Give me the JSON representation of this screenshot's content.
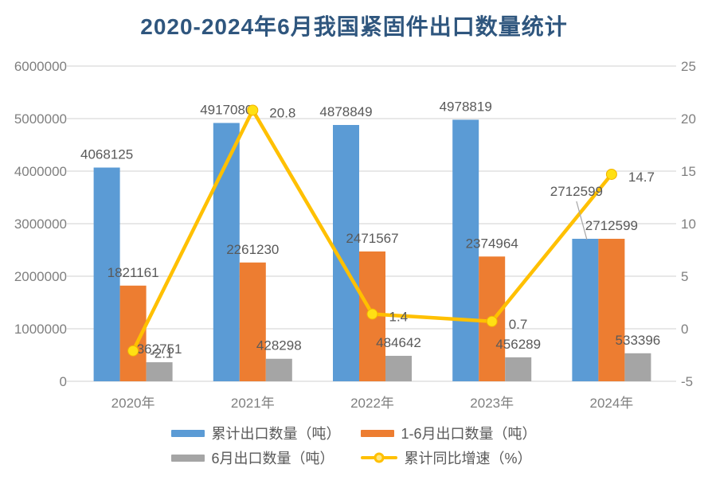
{
  "title": "2020-2024年6月我国紧固件出口数量统计",
  "title_color": "#2F567E",
  "chart_data": {
    "type": "combo-bar-line",
    "title": "2020-2024年6月我国紧固件出口数量统计",
    "categories": [
      "2020年",
      "2021年",
      "2022年",
      "2023年",
      "2024年"
    ],
    "series": [
      {
        "name": "累计出口数量（吨）",
        "type": "bar",
        "axis": "left",
        "color": "#5B9BD5",
        "values": [
          4068125,
          4917080,
          4878849,
          4978819,
          2712599
        ]
      },
      {
        "name": "1-6月出口数量（吨）",
        "type": "bar",
        "axis": "left",
        "color": "#ED7D31",
        "values": [
          1821161,
          2261230,
          2471567,
          2374964,
          2712599
        ]
      },
      {
        "name": "6月出口数量（吨）",
        "type": "bar",
        "axis": "left",
        "color": "#A5A5A5",
        "values": [
          362751,
          428298,
          484642,
          456289,
          533396
        ]
      },
      {
        "name": "累计同比增速（%）",
        "type": "line",
        "axis": "right",
        "color": "#FFC000",
        "marker_color": "#FFE014",
        "values": [
          -2.1,
          20.8,
          1.4,
          0.7,
          14.7
        ]
      }
    ],
    "axes": {
      "left": {
        "range": [
          0,
          6000000
        ],
        "ticks": [
          0,
          1000000,
          2000000,
          3000000,
          4000000,
          5000000,
          6000000
        ]
      },
      "right": {
        "range": [
          -5,
          25
        ],
        "ticks": [
          -5,
          0,
          5,
          10,
          15,
          20,
          25
        ]
      }
    },
    "grid": true,
    "legend_position": "bottom",
    "label_color": "#595959",
    "axis_color": "#7F7F7F",
    "gridline_color": "#D9D9D9",
    "leader_line_color": "#A6A6A6"
  }
}
